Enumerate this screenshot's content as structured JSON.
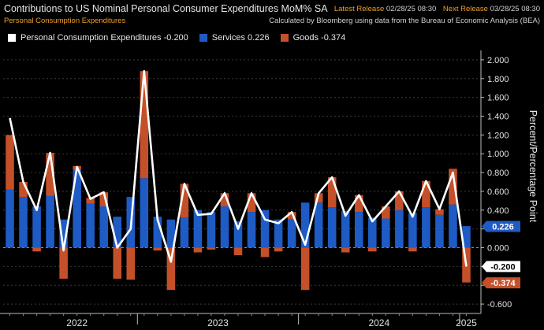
{
  "header": {
    "title": "Contributions to US Nominal Personal Consumer Expenditures MoM% SA",
    "subtitle": "Personal Consumption Expenditures",
    "latest_release_label": "Latest Release",
    "latest_release_value": "02/28/25 08:30",
    "next_release_label": "Next Release",
    "next_release_value": "03/28/25 08:30",
    "source_note": "Calculated by Bloomberg using data from the Bureau of Economic Analysis (BEA)"
  },
  "legend": [
    {
      "label": "Personal Consumption Expenditures -0.200",
      "color": "#ffffff"
    },
    {
      "label": "Services 0.226",
      "color": "#1f5bc4"
    },
    {
      "label": "Goods -0.374",
      "color": "#c4502a"
    }
  ],
  "chart_data": {
    "type": "bar",
    "title": "Contributions to US Nominal Personal Consumer Expenditures MoM% SA",
    "ylabel": "Percent/Percentage Point",
    "ylim": [
      -0.7,
      2.1
    ],
    "yticks": [
      "2.000",
      "1.800",
      "1.600",
      "1.400",
      "1.200",
      "1.000",
      "0.800",
      "0.600",
      "0.400",
      "0.200",
      "0.000",
      "-0.200",
      "-0.400",
      "-0.600"
    ],
    "ytick_values": [
      2.0,
      1.8,
      1.6,
      1.4,
      1.2,
      1.0,
      0.8,
      0.6,
      0.4,
      0.2,
      0.0,
      -0.2,
      -0.4,
      -0.6
    ],
    "year_labels": [
      {
        "label": "2022",
        "center_index": 5
      },
      {
        "label": "2023",
        "center_index": 15.5
      },
      {
        "label": "2024",
        "center_index": 27.5
      },
      {
        "label": "2025",
        "center_index": 34
      }
    ],
    "year_boundaries": [
      9.5,
      21.5,
      33.5
    ],
    "series": [
      {
        "name": "Services",
        "color": "#1f5bc4",
        "values": [
          0.62,
          0.54,
          0.44,
          0.55,
          0.3,
          0.83,
          0.47,
          0.44,
          0.33,
          0.54,
          0.74,
          0.33,
          0.3,
          0.32,
          0.4,
          0.38,
          0.44,
          0.28,
          0.38,
          0.4,
          0.3,
          0.3,
          0.48,
          0.48,
          0.43,
          0.39,
          0.38,
          0.32,
          0.31,
          0.4,
          0.37,
          0.43,
          0.35,
          0.46,
          0.23
        ]
      },
      {
        "name": "Goods",
        "color": "#c4502a",
        "values": [
          0.58,
          0.16,
          -0.04,
          0.46,
          -0.33,
          0.04,
          0.06,
          0.15,
          -0.33,
          -0.34,
          1.14,
          -0.03,
          -0.45,
          0.36,
          -0.05,
          -0.02,
          0.14,
          -0.08,
          0.2,
          -0.1,
          -0.04,
          0.08,
          -0.45,
          0.1,
          0.32,
          -0.05,
          0.18,
          -0.04,
          0.13,
          0.2,
          -0.04,
          0.28,
          0.06,
          0.38,
          -0.37
        ]
      },
      {
        "name": "Personal Consumption Expenditures",
        "color": "#ffffff",
        "values": [
          1.38,
          0.7,
          0.4,
          1.01,
          -0.03,
          0.86,
          0.52,
          0.59,
          0.0,
          0.2,
          1.88,
          0.3,
          -0.15,
          0.68,
          0.35,
          0.36,
          0.58,
          0.2,
          0.58,
          0.3,
          0.26,
          0.38,
          0.03,
          0.58,
          0.75,
          0.34,
          0.56,
          0.28,
          0.44,
          0.6,
          0.33,
          0.71,
          0.41,
          0.8,
          -0.2
        ]
      }
    ],
    "last_value_flags": [
      {
        "label": "0.226",
        "value": 0.226,
        "color": "#1f5bc4",
        "text_color": "#ffffff"
      },
      {
        "label": "-0.200",
        "value": -0.2,
        "color": "#ffffff",
        "text_color": "#000000"
      },
      {
        "label": "-0.374",
        "value": -0.374,
        "color": "#c4502a",
        "text_color": "#ffffff"
      }
    ]
  }
}
